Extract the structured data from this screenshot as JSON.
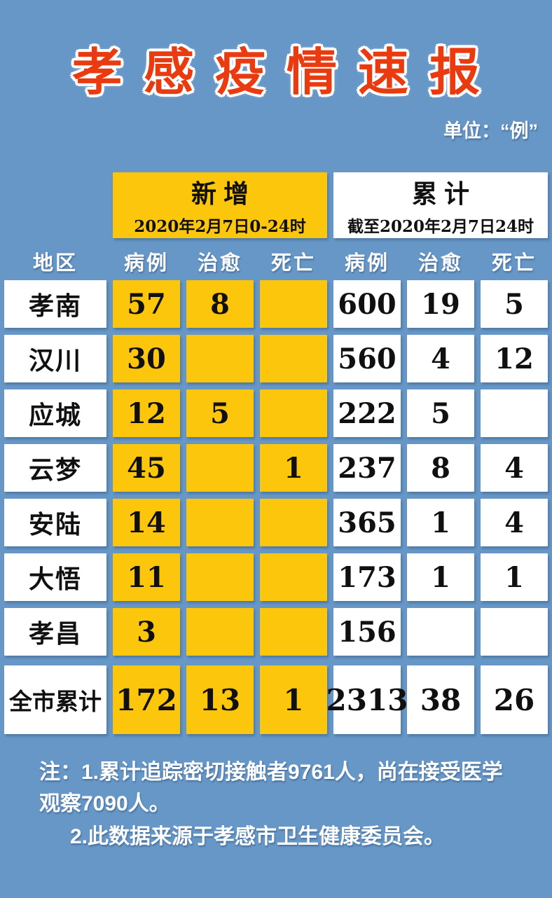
{
  "page": {
    "title": "孝感疫情速报",
    "unit_label": "单位：“例”"
  },
  "chart_data": {
    "type": "table",
    "title": "孝感疫情速报",
    "unit": "例",
    "region_column": "地区",
    "column_groups": [
      {
        "label": "新增",
        "period": "2020年2月7日0-24时",
        "columns": [
          "病例",
          "治愈",
          "死亡"
        ]
      },
      {
        "label": "累计",
        "period": "截至2020年2月7日24时",
        "columns": [
          "病例",
          "治愈",
          "死亡"
        ]
      }
    ],
    "rows": [
      {
        "region": "孝南",
        "values": [
          57,
          8,
          null,
          600,
          19,
          5
        ]
      },
      {
        "region": "汉川",
        "values": [
          30,
          null,
          null,
          560,
          4,
          12
        ]
      },
      {
        "region": "应城",
        "values": [
          12,
          5,
          null,
          222,
          5,
          null
        ]
      },
      {
        "region": "云梦",
        "values": [
          45,
          null,
          1,
          237,
          8,
          4
        ]
      },
      {
        "region": "安陆",
        "values": [
          14,
          null,
          null,
          365,
          1,
          4
        ]
      },
      {
        "region": "大悟",
        "values": [
          11,
          null,
          null,
          173,
          1,
          1
        ]
      },
      {
        "region": "孝昌",
        "values": [
          3,
          null,
          null,
          156,
          null,
          null
        ]
      },
      {
        "region": "全市累计",
        "values": [
          172,
          13,
          1,
          2313,
          38,
          26
        ],
        "is_total": true
      }
    ],
    "notes": [
      "注：1.累计追踪密切接触者9761人，尚在接受医学观察7090人。",
      "2.此数据来源于孝感市卫生健康委员会。"
    ]
  },
  "colors": {
    "background": "#6697c7",
    "highlight_yellow": "#fcc60d",
    "title_red": "#e93a10",
    "cell_white": "#ffffff",
    "text_black": "#101010",
    "text_white": "#ffffff"
  }
}
